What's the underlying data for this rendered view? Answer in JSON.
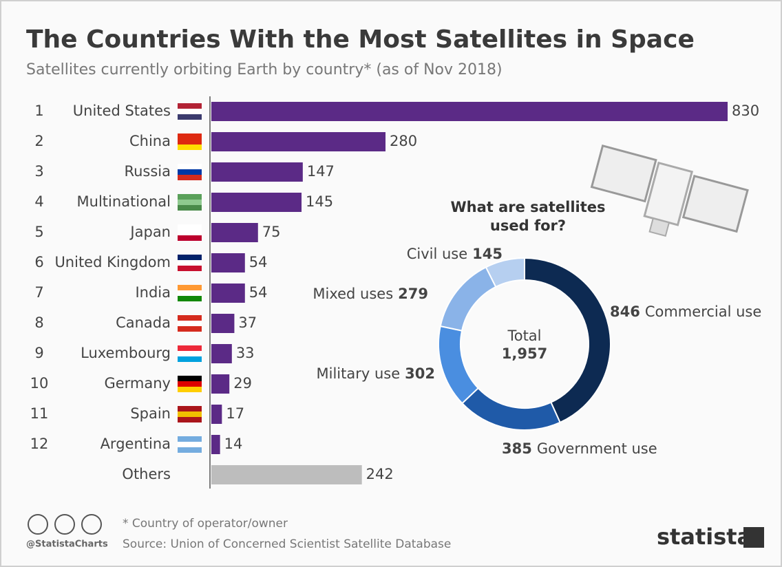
{
  "chart_data": [
    {
      "type": "barh",
      "title": "The Countries With the Most Satellites in Space",
      "subtitle": "Satellites currently orbiting Earth by country* (as of Nov 2018)",
      "ranks": [
        "1",
        "2",
        "3",
        "4",
        "5",
        "6",
        "7",
        "8",
        "9",
        "10",
        "11",
        "12",
        null
      ],
      "categories": [
        "United States",
        "China",
        "Russia",
        "Multinational",
        "Japan",
        "United Kingdom",
        "India",
        "Canada",
        "Luxembourg",
        "Germany",
        "Spain",
        "Argentina",
        "Others"
      ],
      "values": [
        830,
        280,
        147,
        145,
        75,
        54,
        54,
        37,
        33,
        29,
        17,
        14,
        242
      ],
      "colors": [
        "#5b2a86",
        "#5b2a86",
        "#5b2a86",
        "#5b2a86",
        "#5b2a86",
        "#5b2a86",
        "#5b2a86",
        "#5b2a86",
        "#5b2a86",
        "#5b2a86",
        "#5b2a86",
        "#5b2a86",
        "#bdbdbd"
      ]
    },
    {
      "type": "donut",
      "title": "What are satellites used for?",
      "center_label": "Total",
      "total": 1957,
      "total_label": "1,957",
      "categories": [
        "Commercial use",
        "Government use",
        "Military use",
        "Mixed uses",
        "Civil use"
      ],
      "values": [
        846,
        385,
        302,
        279,
        145
      ],
      "colors": [
        "#0d2a52",
        "#1f5aa8",
        "#4a8ee0",
        "#8ab3e8",
        "#b6cff0"
      ]
    }
  ],
  "footer": {
    "note": "* Country of operator/owner",
    "source": "Source: Union of Concerned Scientist Satellite Database",
    "handle": "@StatistaCharts",
    "brand": "statista"
  }
}
